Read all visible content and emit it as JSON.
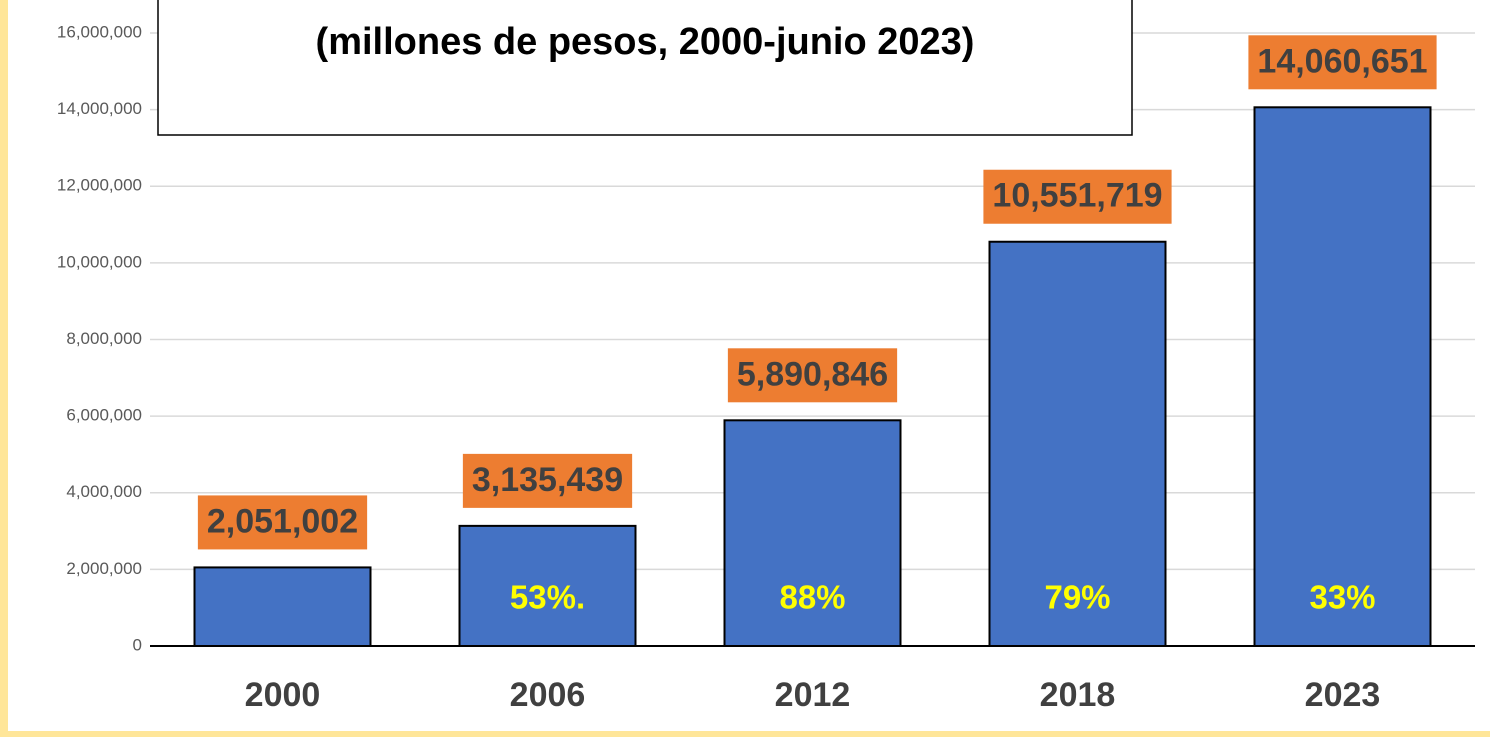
{
  "chart_data": {
    "type": "bar",
    "title": "(millones de pesos, 2000-junio 2023)",
    "categories": [
      "2000",
      "2006",
      "2012",
      "2018",
      "2023"
    ],
    "values": [
      2051002,
      3135439,
      5890846,
      10551719,
      14060651
    ],
    "value_labels": [
      "2,051,002",
      "3,135,439",
      "5,890,846",
      "10,551,719",
      "14,060,651"
    ],
    "growth_labels": [
      null,
      "53%.",
      "88%",
      "79%",
      "33%"
    ],
    "color": "#4472C4",
    "label_color": "#ED7D31",
    "ylim": [
      0,
      16000000
    ],
    "yticks": [
      0,
      {
        "value": 2000000,
        "label": "2,000,000"
      },
      {
        "value": 4000000,
        "label": "4,000,000"
      },
      {
        "value": 6000000,
        "label": "6,000,000"
      },
      {
        "value": 8000000,
        "label": "8,000,000"
      },
      {
        "value": 10000000,
        "label": "10,000,000"
      },
      {
        "value": 12000000,
        "label": "12,000,000"
      },
      {
        "value": 14000000,
        "label": "14,000,000"
      },
      {
        "value": 16000000,
        "label": "16,000,000"
      }
    ],
    "grid": true
  }
}
